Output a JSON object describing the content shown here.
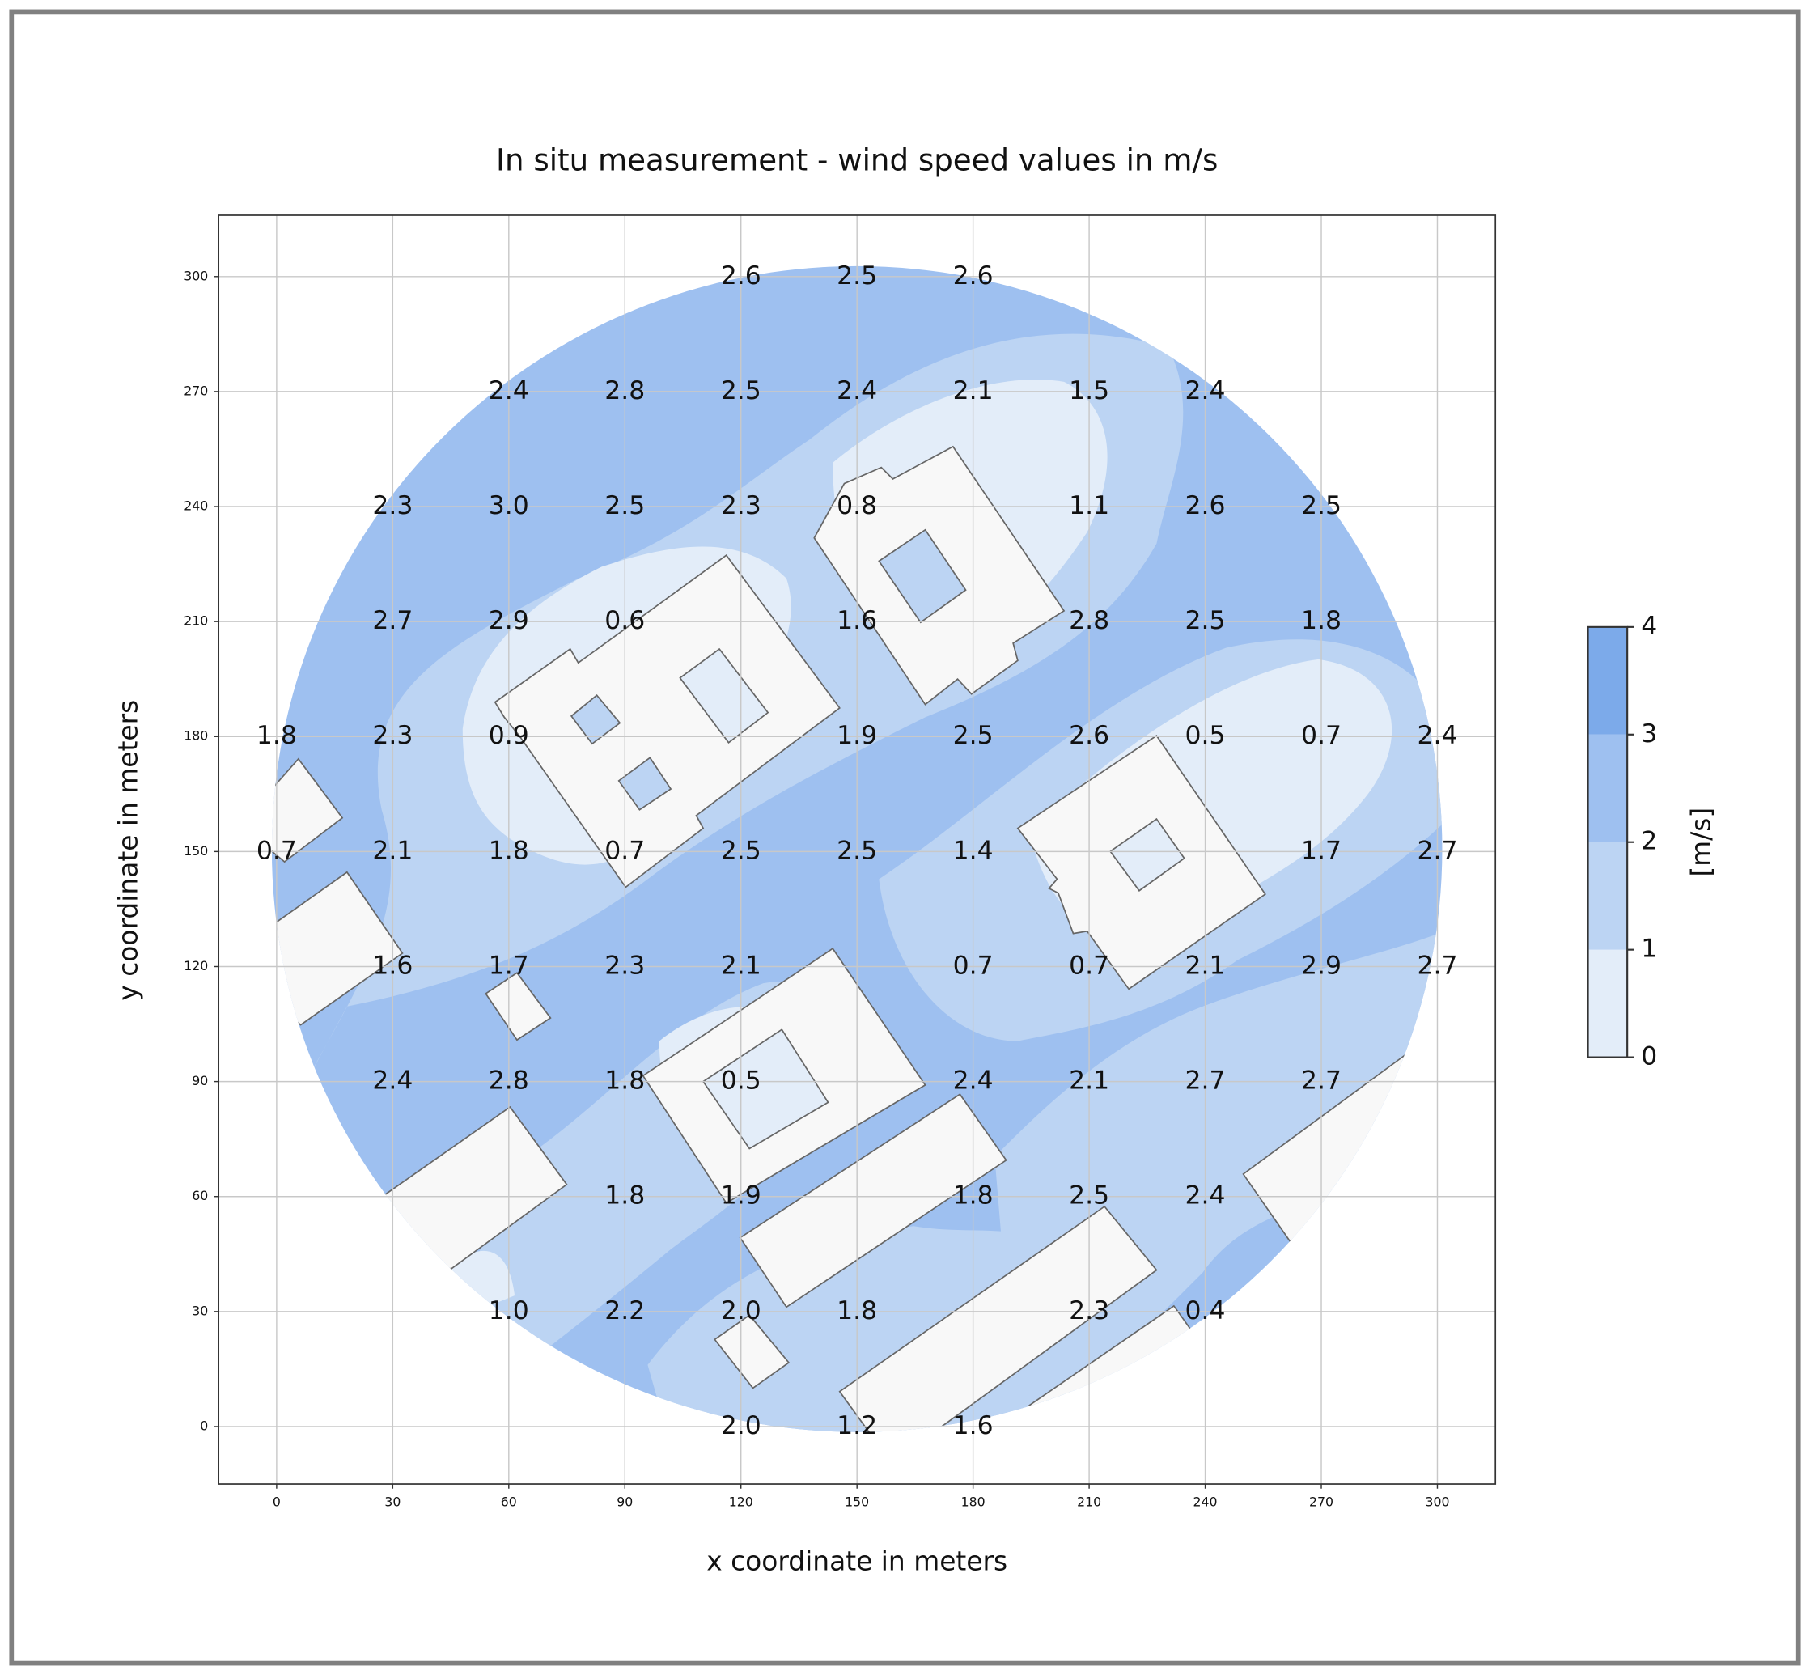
{
  "chart_data": {
    "type": "contour",
    "title": "In situ measurement - wind speed values in m/s",
    "x_label": "x coordinate in meters",
    "y_label": "y coordinate in meters",
    "xlim": [
      -15,
      315
    ],
    "ylim": [
      -15,
      316
    ],
    "xticks": [
      0,
      30,
      60,
      90,
      120,
      150,
      180,
      210,
      240,
      270,
      300
    ],
    "yticks": [
      0,
      30,
      60,
      90,
      120,
      150,
      180,
      210,
      240,
      270,
      300
    ],
    "grid": true,
    "x": [
      120,
      150,
      180,
      60,
      90,
      120,
      150,
      180,
      210,
      240,
      30,
      60,
      90,
      120,
      150,
      210,
      240,
      270,
      30,
      60,
      90,
      150,
      210,
      240,
      270,
      0,
      30,
      60,
      150,
      180,
      210,
      240,
      270,
      300,
      0,
      30,
      60,
      90,
      120,
      150,
      180,
      270,
      300,
      30,
      60,
      90,
      120,
      180,
      210,
      240,
      270,
      300,
      30,
      60,
      90,
      120,
      180,
      210,
      240,
      270,
      90,
      120,
      180,
      210,
      240,
      60,
      90,
      120,
      150,
      210,
      240,
      120,
      150,
      180
    ],
    "y": [
      300,
      300,
      300,
      270,
      270,
      270,
      270,
      270,
      270,
      270,
      240,
      240,
      240,
      240,
      240,
      240,
      240,
      240,
      210,
      210,
      210,
      210,
      210,
      210,
      210,
      180,
      180,
      180,
      180,
      180,
      180,
      180,
      180,
      180,
      150,
      150,
      150,
      150,
      150,
      150,
      150,
      150,
      150,
      120,
      120,
      120,
      120,
      120,
      120,
      120,
      120,
      120,
      90,
      90,
      90,
      90,
      90,
      90,
      90,
      90,
      60,
      60,
      60,
      60,
      60,
      30,
      30,
      30,
      30,
      30,
      30,
      0,
      0,
      0
    ],
    "values": [
      2.6,
      2.5,
      2.6,
      2.4,
      2.8,
      2.5,
      2.4,
      2.1,
      1.5,
      2.4,
      2.3,
      3.0,
      2.5,
      2.3,
      0.8,
      1.1,
      2.6,
      2.5,
      2.7,
      2.9,
      0.6,
      1.6,
      2.8,
      2.5,
      1.8,
      1.8,
      2.3,
      0.9,
      1.9,
      2.5,
      2.6,
      0.5,
      0.7,
      2.4,
      0.7,
      2.1,
      1.8,
      0.7,
      2.5,
      2.5,
      1.4,
      1.7,
      2.7,
      1.6,
      1.7,
      2.3,
      2.1,
      0.7,
      0.7,
      2.1,
      2.9,
      2.7,
      2.4,
      2.8,
      1.8,
      0.5,
      2.4,
      2.1,
      2.7,
      2.7,
      1.8,
      1.9,
      1.8,
      2.5,
      2.4,
      1.0,
      2.2,
      2.0,
      1.8,
      2.3,
      0.4,
      2.0,
      1.2,
      1.6
    ],
    "value_labels": [
      "2.6",
      "2.5",
      "2.6",
      "2.4",
      "2.8",
      "2.5",
      "2.4",
      "2.1",
      "1.5",
      "2.4",
      "2.3",
      "3.0",
      "2.5",
      "2.3",
      "0.8",
      "1.1",
      "2.6",
      "2.5",
      "2.7",
      "2.9",
      "0.6",
      "1.6",
      "2.8",
      "2.5",
      "1.8",
      "1.8",
      "2.3",
      "0.9",
      "1.9",
      "2.5",
      "2.6",
      "0.5",
      "0.7",
      "2.4",
      "0.7",
      "2.1",
      "1.8",
      "0.7",
      "2.5",
      "2.5",
      "1.4",
      "1.7",
      "2.7",
      "1.6",
      "1.7",
      "2.3",
      "2.1",
      "0.7",
      "0.7",
      "2.1",
      "2.9",
      "2.7",
      "2.4",
      "2.8",
      "1.8",
      "0.5",
      "2.4",
      "2.1",
      "2.7",
      "2.7",
      "1.8",
      "1.9",
      "1.8",
      "2.5",
      "2.4",
      "1.0",
      "2.2",
      "2.0",
      "1.8",
      "2.3",
      "0.4",
      "2.0",
      "1.2",
      "1.6"
    ],
    "colorbar": {
      "label": "[m/s]",
      "ticks": [
        0,
        1,
        2,
        3,
        4
      ],
      "colors": [
        "#e3edf9",
        "#bcd4f3",
        "#9ec0f0",
        "#7caaea"
      ]
    }
  }
}
